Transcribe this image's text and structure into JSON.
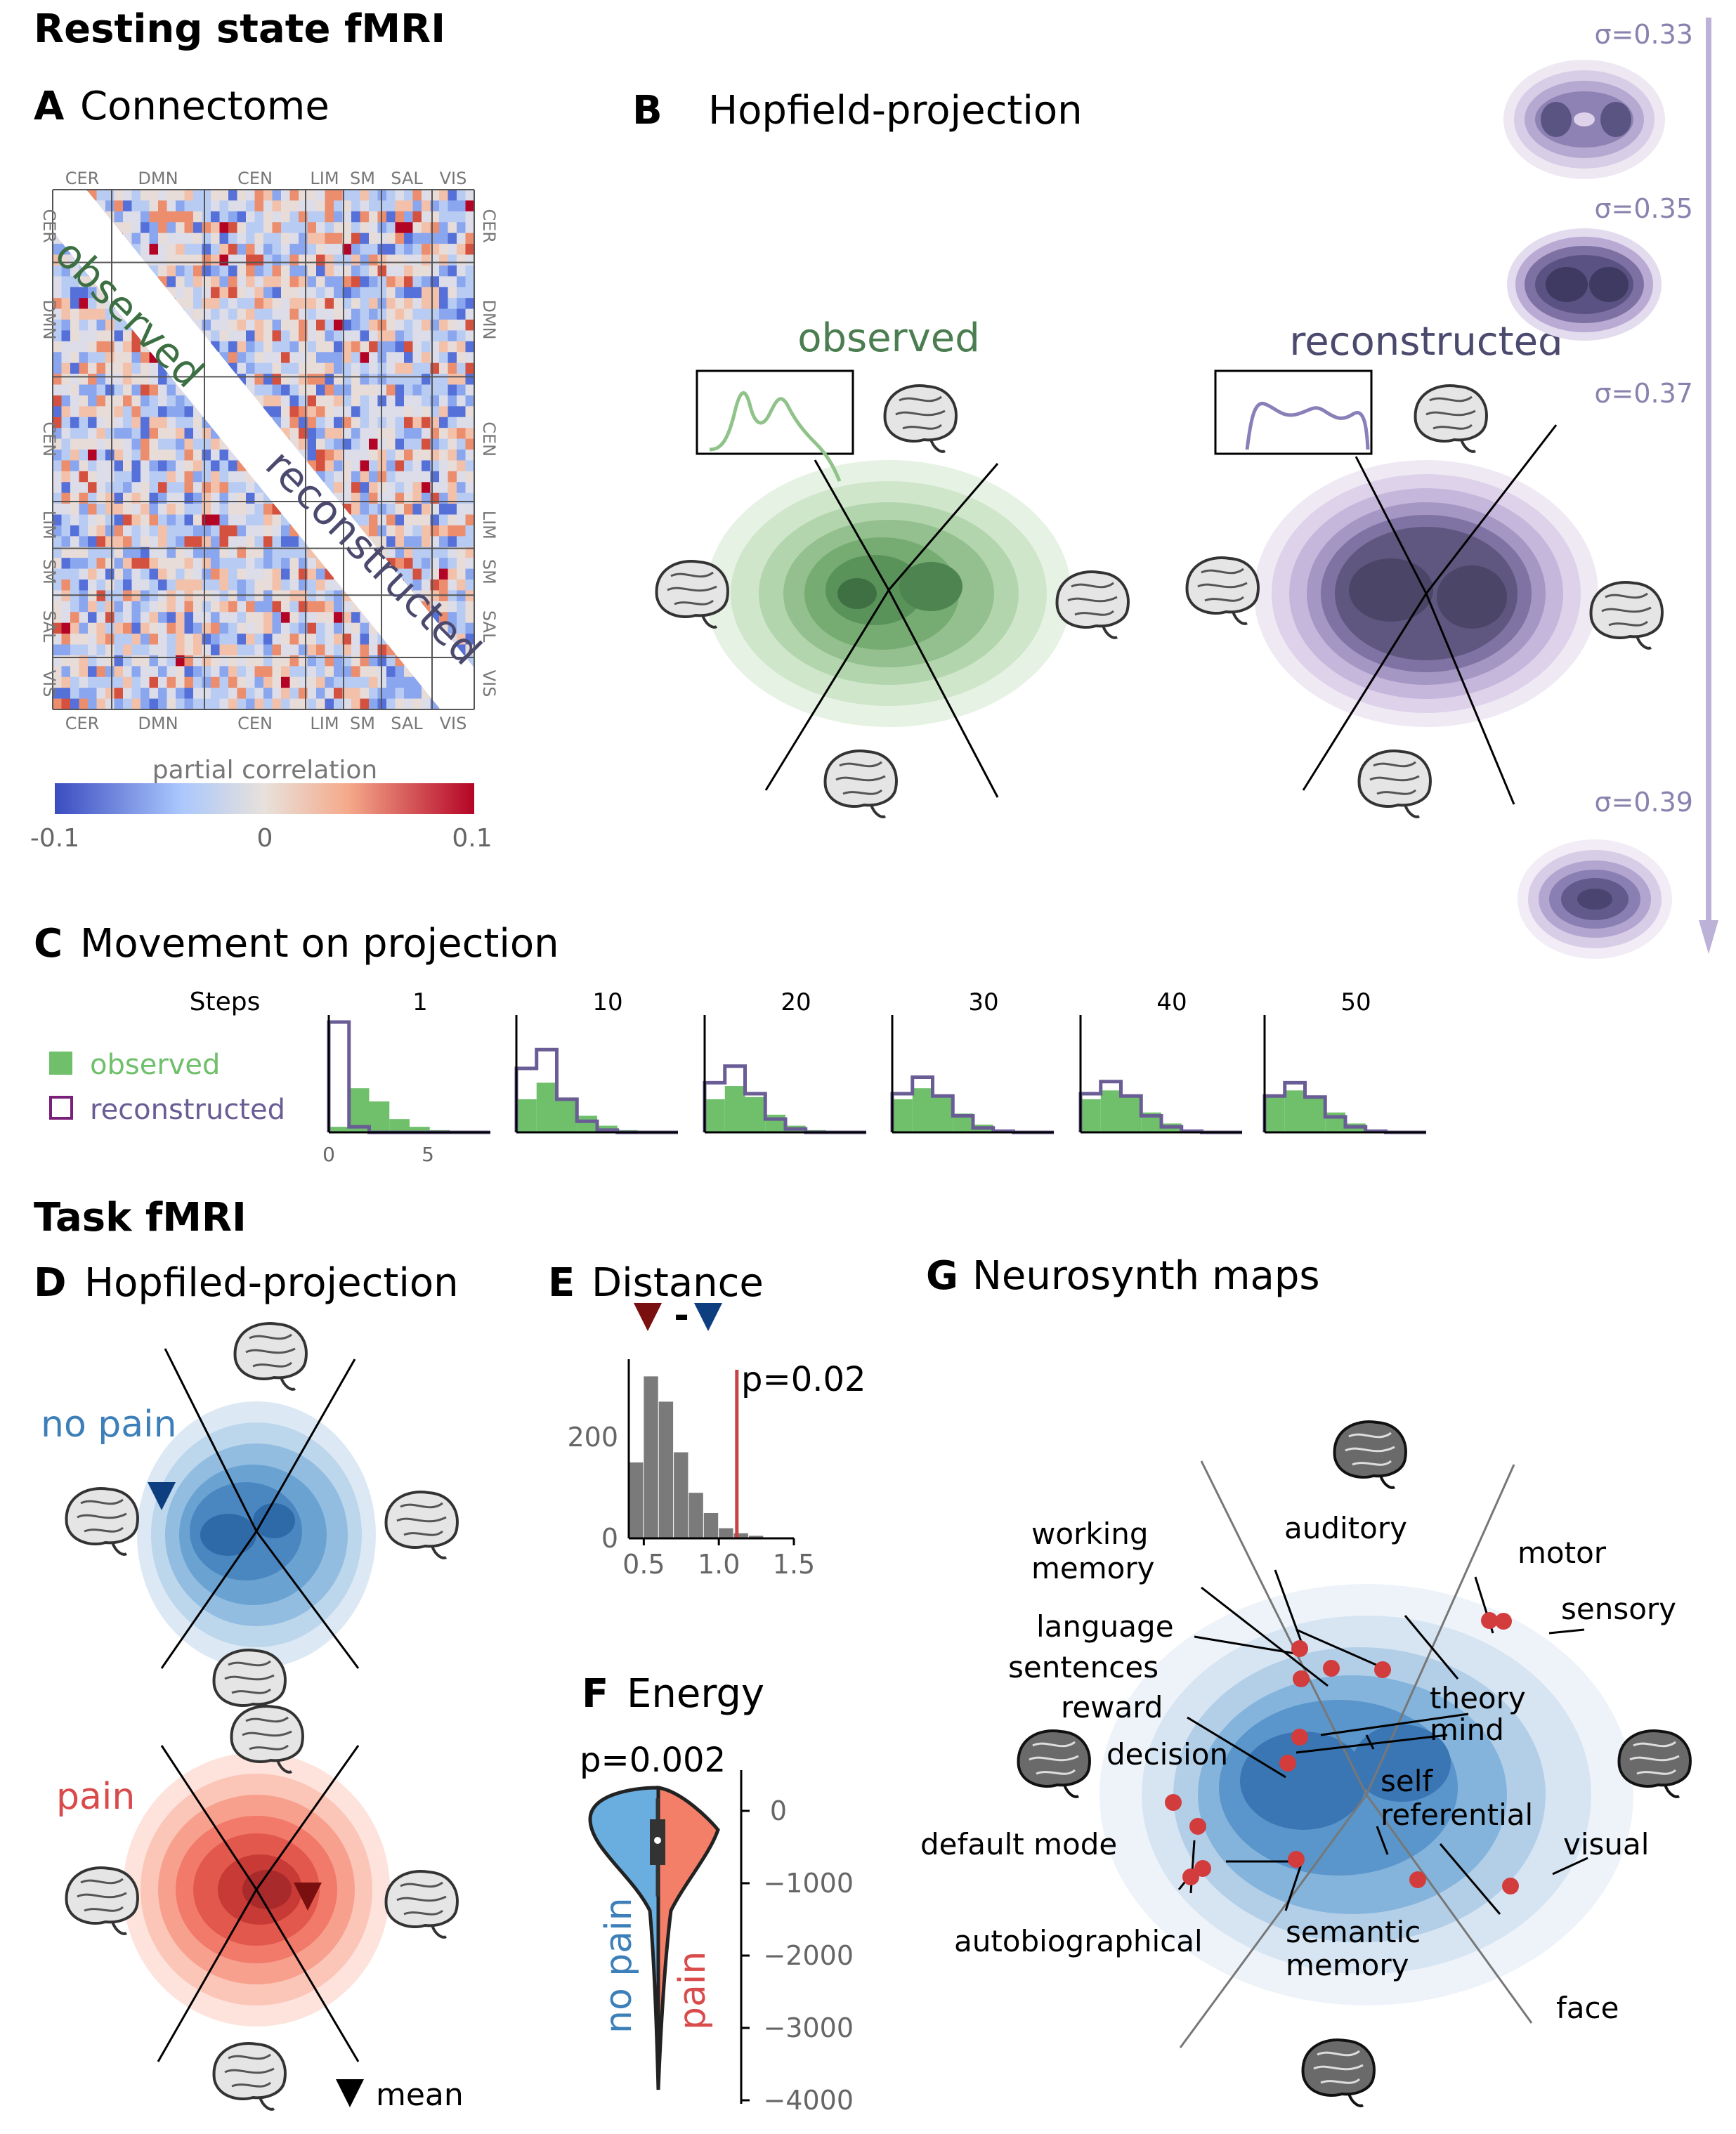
{
  "sections": {
    "resting": "Resting state fMRI",
    "task": "Task fMRI"
  },
  "panels": {
    "A": {
      "letter": "A",
      "title": "Connectome"
    },
    "B": {
      "letter": "B",
      "title": "Hopfield-projection"
    },
    "C": {
      "letter": "C",
      "title": "Movement on projection"
    },
    "D": {
      "letter": "D",
      "title": "Hopfiled-projection"
    },
    "E": {
      "letter": "E",
      "title": "Distance"
    },
    "F": {
      "letter": "F",
      "title": "Energy"
    },
    "G": {
      "letter": "G",
      "title": "Neurosynth maps"
    }
  },
  "connectome": {
    "networks": [
      "CER",
      "DMN",
      "CEN",
      "LIM",
      "SM",
      "SAL",
      "VIS"
    ],
    "upper_label": "observed",
    "lower_label": "reconstructed",
    "colorbar": {
      "label": "partial correlation",
      "ticks": [
        "-0.1",
        "0",
        "0.1"
      ]
    }
  },
  "projection_resting": {
    "observed_label": "observed",
    "reconstructed_label": "reconstructed",
    "sigma_labels": [
      "σ=0.33",
      "σ=0.35",
      "σ=0.37",
      "σ=0.39"
    ]
  },
  "movement": {
    "steps_label": "Steps",
    "legend": {
      "observed": "observed",
      "reconstructed": "reconstructed"
    },
    "x_ticks": [
      "0",
      "5"
    ],
    "chart_data": {
      "type": "bar",
      "step_counts": [
        "1",
        "10",
        "20",
        "30",
        "40",
        "50"
      ],
      "series": [
        {
          "name": "observed",
          "color": "#6fbf6b"
        },
        {
          "name": "reconstructed",
          "color": "#7b6a9e"
        }
      ],
      "x_range": [
        0,
        8
      ]
    }
  },
  "task_projection": {
    "no_pain_label": "no pain",
    "pain_label": "pain",
    "mean_label": "mean"
  },
  "distance": {
    "p_label": "p=0.02",
    "minus_sign": "-",
    "chart_data": {
      "type": "bar",
      "x": [
        0.45,
        0.55,
        0.65,
        0.75,
        0.85,
        0.95,
        1.05,
        1.15,
        1.25,
        1.35
      ],
      "values": [
        150,
        320,
        270,
        170,
        90,
        50,
        20,
        10,
        5,
        2
      ],
      "observed_line": 1.12,
      "x_ticks": [
        "0.5",
        "1.0",
        "1.5"
      ],
      "y_ticks": [
        "0",
        "200"
      ],
      "xlim": [
        0.4,
        1.5
      ],
      "ylim": [
        0,
        340
      ]
    }
  },
  "energy": {
    "p_label": "p=0.002",
    "no_pain_label": "no pain",
    "pain_label": "pain",
    "chart_data": {
      "type": "violin",
      "y_ticks": [
        "0",
        "−1000",
        "−2000",
        "−3000",
        "−4000"
      ],
      "ylim": [
        -4000,
        300
      ]
    }
  },
  "neurosynth": {
    "labels": [
      "working memory",
      "auditory",
      "motor",
      "sensory",
      "language",
      "sentences",
      "reward",
      "theory mind",
      "decision",
      "self referential",
      "default mode",
      "visual",
      "autobiographical",
      "semantic memory",
      "face"
    ]
  },
  "colors": {
    "observed_green": "#4a7d4f",
    "reconstructed_purple": "#4b4a6e",
    "sigma_purple": "#8a82ae",
    "no_pain_blue": "#3d7fb8",
    "pain_red": "#d94b4b",
    "point_red": "#d23c3c"
  }
}
